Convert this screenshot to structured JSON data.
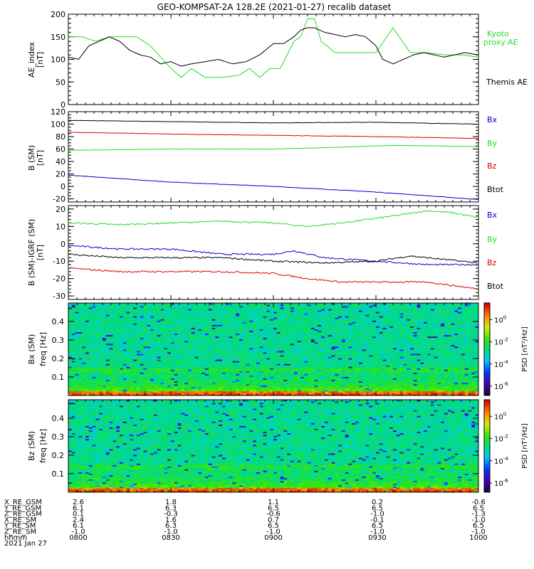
{
  "figure": {
    "title": "GEO-KOMPSAT-2A 128.2E (2021-01-27) recalib dataset"
  },
  "colors": {
    "black": "#000000",
    "red": "#dd0000",
    "green": "#22dd22",
    "blue": "#0000cc"
  },
  "chart_data": [
    {
      "type": "line",
      "ylabel": "AE_index [nT]",
      "ylim": [
        0,
        200
      ],
      "yticks": [
        0,
        50,
        100,
        150,
        200
      ],
      "x_range_hhmm": [
        "0800",
        "1000"
      ],
      "legend": [
        "Kyoto proxy AE",
        "Themis AE"
      ],
      "series": [
        {
          "name": "Kyoto proxy AE",
          "color": "#22dd22",
          "x": [
            0,
            4,
            8,
            12,
            16,
            20,
            24,
            27,
            30,
            33,
            36,
            40,
            45,
            50,
            53,
            56,
            59,
            62,
            64,
            66,
            68,
            70,
            72,
            74,
            78,
            82,
            86,
            90,
            95,
            100,
            105,
            110,
            115,
            120
          ],
          "y": [
            150,
            150,
            140,
            150,
            150,
            150,
            130,
            105,
            80,
            60,
            80,
            60,
            60,
            65,
            80,
            60,
            80,
            80,
            110,
            140,
            150,
            190,
            190,
            140,
            115,
            115,
            115,
            115,
            170,
            115,
            115,
            110,
            110,
            105
          ]
        },
        {
          "name": "Themis AE",
          "color": "#000000",
          "x": [
            0,
            3,
            6,
            9,
            12,
            15,
            18,
            21,
            24,
            27,
            30,
            33,
            36,
            40,
            44,
            48,
            52,
            56,
            60,
            63,
            66,
            68,
            70,
            72,
            75,
            78,
            81,
            84,
            87,
            90,
            92,
            95,
            98,
            101,
            104,
            107,
            110,
            113,
            116,
            120
          ],
          "y": [
            105,
            100,
            130,
            140,
            150,
            140,
            120,
            110,
            105,
            90,
            95,
            85,
            90,
            95,
            100,
            90,
            95,
            110,
            135,
            135,
            150,
            165,
            170,
            170,
            160,
            155,
            150,
            155,
            150,
            130,
            100,
            90,
            100,
            110,
            115,
            110,
            105,
            110,
            115,
            110
          ]
        }
      ]
    },
    {
      "type": "line",
      "ylabel": "B (SM) [nT]",
      "ylim": [
        -25,
        120
      ],
      "yticks": [
        -20,
        0,
        20,
        40,
        60,
        80,
        100,
        120
      ],
      "legend": [
        "Bx",
        "By",
        "Bz",
        "Btot"
      ],
      "series": [
        {
          "name": "Btot",
          "color": "#000000",
          "x": [
            0,
            30,
            60,
            90,
            120
          ],
          "y": [
            106,
            104,
            102,
            103,
            100
          ]
        },
        {
          "name": "Bz",
          "color": "#dd0000",
          "x": [
            0,
            30,
            60,
            90,
            120
          ],
          "y": [
            87,
            84,
            82,
            80,
            77
          ]
        },
        {
          "name": "By",
          "color": "#22dd22",
          "x": [
            0,
            30,
            60,
            80,
            95,
            120
          ],
          "y": [
            58,
            60,
            60,
            63,
            66,
            64
          ]
        },
        {
          "name": "Bx",
          "color": "#0000cc",
          "x": [
            0,
            30,
            60,
            90,
            120
          ],
          "y": [
            18,
            7,
            0,
            -9,
            -21
          ]
        }
      ]
    },
    {
      "type": "line",
      "ylabel": "B (SM)-IGRF (SM) [nT]",
      "ylim": [
        -32,
        22
      ],
      "yticks": [
        -30,
        -20,
        -10,
        0,
        10,
        20
      ],
      "legend": [
        "Bx",
        "By",
        "Bz",
        "Btot"
      ],
      "series": [
        {
          "name": "By",
          "color": "#22dd22",
          "x": [
            0,
            15,
            30,
            45,
            60,
            70,
            80,
            95,
            105,
            112,
            120
          ],
          "y": [
            12,
            11,
            12,
            13,
            12,
            10,
            12,
            16,
            19,
            18,
            15
          ]
        },
        {
          "name": "Bx",
          "color": "#0000cc",
          "x": [
            0,
            15,
            30,
            45,
            60,
            66,
            75,
            90,
            105,
            120
          ],
          "y": [
            -1,
            -3,
            -3,
            -6,
            -6,
            -4,
            -8,
            -10,
            -12,
            -12
          ]
        },
        {
          "name": "Btot",
          "color": "#000000",
          "x": [
            0,
            15,
            30,
            45,
            60,
            75,
            90,
            100,
            110,
            120
          ],
          "y": [
            -6,
            -8,
            -8,
            -8,
            -10,
            -11,
            -10,
            -7,
            -9,
            -11
          ]
        },
        {
          "name": "Bz",
          "color": "#dd0000",
          "x": [
            0,
            15,
            30,
            45,
            60,
            70,
            80,
            90,
            105,
            120
          ],
          "y": [
            -14,
            -16,
            -16,
            -16,
            -17,
            -20,
            -22,
            -22,
            -22,
            -26
          ]
        }
      ]
    },
    {
      "type": "heatmap",
      "ylabel": "Bx (SM) freq [Hz]",
      "ylim": [
        0,
        0.5
      ],
      "yticks": [
        0.1,
        0.2,
        0.3,
        0.4
      ],
      "colorbar_label": "PSD [nT^2/Hz]",
      "colorbar_ticks": [
        "10^0",
        "10^-2",
        "10^-4",
        "10^-6"
      ]
    },
    {
      "type": "heatmap",
      "ylabel": "Bz (SM) freq [Hz]",
      "ylim": [
        0,
        0.5
      ],
      "yticks": [
        0.1,
        0.2,
        0.3,
        0.4
      ],
      "colorbar_label": "PSD [nT^2/Hz]",
      "colorbar_ticks": [
        "10^0",
        "10^-2",
        "10^-4",
        "10^-6"
      ]
    }
  ],
  "axes": {
    "ae_label_line1": "AE_index",
    "ae_label_line2": "[nT]",
    "b_label_line1": "B (SM)",
    "b_label_line2": "[nT]",
    "bd_label_line1": "B (SM)-IGRF (SM)",
    "bd_label_line2": "[nT]",
    "bx_spec_line1": "Bx (SM)",
    "bx_spec_line2": "freq [Hz]",
    "bz_spec_line1": "Bz (SM)",
    "bz_spec_line2": "freq [Hz]",
    "psd_label": "PSD [nT²/Hz]"
  },
  "legends": {
    "ae": {
      "kyoto1": "Kyoto",
      "kyoto2": "proxy AE",
      "themis": "Themis AE"
    },
    "b": {
      "bx": "Bx",
      "by": "By",
      "bz": "Bz",
      "btot": "Btot"
    }
  },
  "orbit": {
    "row_labels": [
      "X_RE_GSM",
      "Y_RE_GSM",
      "Z_RE_GSM",
      "X_RE_SM",
      "Y_RE_SM",
      "Z_RE_SM",
      "hhmm"
    ],
    "date": "2021 Jan 27",
    "columns": [
      [
        "2.6",
        "6.1",
        "0.1",
        "2.4",
        "6.1",
        "-1.0",
        "0800"
      ],
      [
        "1.8",
        "6.3",
        "-0.3",
        "1.6",
        "6.3",
        "-1.0",
        "0830"
      ],
      [
        "1.1",
        "6.5",
        "-0.6",
        "0.7",
        "6.5",
        "-1.0",
        "0900"
      ],
      [
        "0.2",
        "6.5",
        "-1.0",
        "-0.1",
        "6.5",
        "-1.0",
        "0930"
      ],
      [
        "-0.6",
        "6.5",
        "-1.3",
        "-1.0",
        "6.5",
        "-1.0",
        "1000"
      ]
    ]
  }
}
